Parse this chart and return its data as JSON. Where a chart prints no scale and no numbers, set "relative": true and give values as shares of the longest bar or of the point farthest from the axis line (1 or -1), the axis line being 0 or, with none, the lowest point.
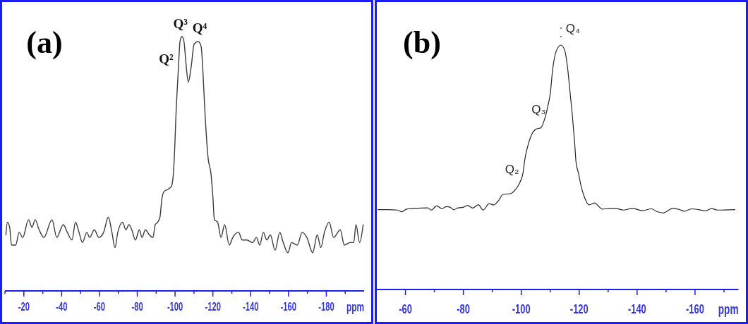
{
  "chart_data": [
    {
      "type": "line",
      "title": "(a)",
      "xlabel": "ppm",
      "relative": true,
      "color": "#3c3c3c",
      "xlim": [
        -10,
        -200
      ],
      "xticks": [
        {
          "value": -10,
          "label": null
        },
        -20,
        {
          "value": -30,
          "label": null
        },
        -40,
        {
          "value": -50,
          "label": null
        },
        -60,
        {
          "value": -70,
          "label": null
        },
        -80,
        {
          "value": -90,
          "label": null
        },
        -100,
        {
          "value": -110,
          "label": null
        },
        -120,
        {
          "value": -130,
          "label": null
        },
        -140,
        {
          "value": -150,
          "label": null
        },
        -160,
        {
          "value": -170,
          "label": null
        },
        -180,
        {
          "value": -190,
          "label": null
        }
      ],
      "x": [
        -10.5,
        -11.3,
        -12.5,
        -13.5,
        -15.7,
        -17.5,
        -19.4,
        -22.5,
        -24.3,
        -26.0,
        -28.1,
        -30.6,
        -34.9,
        -37.4,
        -40.9,
        -43.0,
        -45.5,
        -47.3,
        -49.2,
        -51.0,
        -53.3,
        -54.8,
        -57.3,
        -59.7,
        -62.2,
        -64.7,
        -66.6,
        -68.2,
        -69.7,
        -72.2,
        -74.0,
        -75.6,
        -77.1,
        -79.0,
        -81.1,
        -82.5,
        -84.3,
        -86.4,
        -88.3,
        -89.5,
        -90.8,
        -92.0,
        -93.0,
        -94.1,
        -96.4,
        -98.0,
        -99.1,
        -99.5,
        -100.7,
        -102.0,
        -102.6,
        -103.6,
        -104.7,
        -105.7,
        -107.0,
        -108.5,
        -110.1,
        -112.3,
        -113.8,
        -114.6,
        -115.6,
        -117.5,
        -119.0,
        -120.0,
        -120.8,
        -122.5,
        -124.3,
        -126.2,
        -128.7,
        -130.5,
        -133.6,
        -135.5,
        -138.0,
        -141.1,
        -143.0,
        -144.8,
        -146.7,
        -148.5,
        -150.4,
        -152.9,
        -155.4,
        -157.2,
        -159.7,
        -161.6,
        -164.7,
        -167.2,
        -169.7,
        -172.8,
        -175.2,
        -177.1,
        -179.0,
        -181.5,
        -183.9,
        -187.4,
        -189.5,
        -192.6,
        -194.5,
        -195.7,
        -197.6,
        -199.5
      ],
      "values": [
        0.22,
        0.27,
        0.25,
        0.18,
        0.18,
        0.23,
        0.21,
        0.28,
        0.25,
        0.28,
        0.24,
        0.21,
        0.28,
        0.21,
        0.26,
        0.23,
        0.2,
        0.27,
        0.23,
        0.19,
        0.23,
        0.21,
        0.24,
        0.21,
        0.23,
        0.29,
        0.23,
        0.17,
        0.23,
        0.27,
        0.24,
        0.26,
        0.24,
        0.2,
        0.24,
        0.21,
        0.24,
        0.22,
        0.21,
        0.26,
        0.27,
        0.29,
        0.36,
        0.39,
        0.4,
        0.41,
        0.46,
        0.51,
        0.73,
        0.91,
        0.98,
        1.0,
        0.98,
        0.9,
        0.82,
        0.88,
        0.97,
        0.98,
        0.96,
        0.88,
        0.73,
        0.52,
        0.46,
        0.37,
        0.28,
        0.27,
        0.21,
        0.26,
        0.18,
        0.21,
        0.23,
        0.2,
        0.2,
        0.19,
        0.21,
        0.18,
        0.23,
        0.2,
        0.22,
        0.16,
        0.23,
        0.19,
        0.15,
        0.19,
        0.18,
        0.23,
        0.21,
        0.15,
        0.22,
        0.17,
        0.23,
        0.27,
        0.21,
        0.24,
        0.18,
        0.19,
        0.19,
        0.26,
        0.19,
        0.26
      ],
      "annotations": [
        {
          "text": "Q²",
          "x": -102.0,
          "y": 0.91
        },
        {
          "text": "Q³",
          "x": -103.6,
          "y": 1.0
        },
        {
          "text": "Q⁴",
          "x": -112.3,
          "y": 0.98
        }
      ]
    },
    {
      "type": "line",
      "title": "(b)",
      "xlabel": "ppm",
      "relative": true,
      "color": "#262626",
      "xlim": [
        -50,
        -175
      ],
      "xticks": [
        -60,
        {
          "value": -70,
          "label": null
        },
        -80,
        {
          "value": -90,
          "label": null
        },
        -100,
        {
          "value": -110,
          "label": null
        },
        -120,
        {
          "value": -130,
          "label": null
        },
        -140,
        {
          "value": -150,
          "label": null
        },
        -160,
        {
          "value": -170,
          "label": null
        }
      ],
      "x": [
        -50.5,
        -53.9,
        -57.2,
        -58.8,
        -60.4,
        -65.3,
        -67.7,
        -68.9,
        -70.8,
        -72.6,
        -74.2,
        -75.4,
        -76.7,
        -77.9,
        -79.9,
        -81.5,
        -83.2,
        -85.2,
        -86.8,
        -88.9,
        -90.5,
        -92.1,
        -93.7,
        -96.2,
        -97.8,
        -99.4,
        -100.7,
        -101.1,
        -102.3,
        -103.5,
        -105.1,
        -106.7,
        -108.0,
        -109.2,
        -110.0,
        -110.8,
        -112.0,
        -113.7,
        -115.0,
        -116.1,
        -116.9,
        -117.7,
        -118.5,
        -118.9,
        -119.8,
        -120.6,
        -121.8,
        -123.4,
        -125.4,
        -126.7,
        -127.9,
        -130.3,
        -132.8,
        -135.2,
        -138.5,
        -141.7,
        -145.0,
        -146.6,
        -149.0,
        -152.3,
        -154.7,
        -156.3,
        -158.8,
        -161.2,
        -163.7,
        -165.7,
        -167.7,
        -173.8
      ],
      "values": [
        0.327,
        0.327,
        0.325,
        0.318,
        0.329,
        0.333,
        0.334,
        0.325,
        0.342,
        0.331,
        0.339,
        0.337,
        0.326,
        0.333,
        0.336,
        0.344,
        0.333,
        0.347,
        0.325,
        0.351,
        0.346,
        0.363,
        0.389,
        0.392,
        0.406,
        0.435,
        0.483,
        0.522,
        0.589,
        0.632,
        0.656,
        0.661,
        0.695,
        0.752,
        0.8,
        0.896,
        0.973,
        1,
        0.978,
        0.896,
        0.8,
        0.704,
        0.589,
        0.522,
        0.474,
        0.426,
        0.378,
        0.346,
        0.354,
        0.341,
        0.329,
        0.331,
        0.331,
        0.325,
        0.332,
        0.323,
        0.33,
        0.32,
        0.313,
        0.332,
        0.327,
        0.32,
        0.33,
        0.327,
        0.322,
        0.331,
        0.325,
        0.327
      ],
      "annotations": [
        {
          "text": "Q₂",
          "x": -100.7,
          "y": 0.48
        },
        {
          "text": "Q₃",
          "x": -108.7,
          "y": 0.72
        },
        {
          "text": "Q₄",
          "x": -113.7,
          "y": 1.0
        }
      ]
    }
  ]
}
